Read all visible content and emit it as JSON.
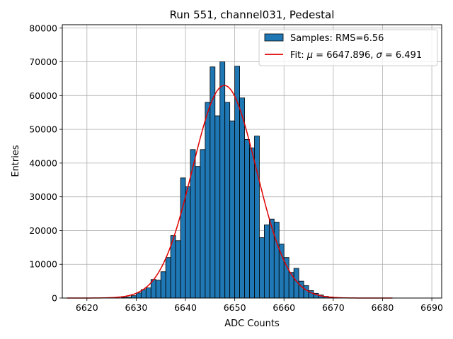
{
  "chart_data": {
    "type": "bar",
    "title": "Run 551, channel031, Pedestal",
    "xlabel": "ADC Counts",
    "ylabel": "Entries",
    "xlim": [
      6615,
      6692
    ],
    "ylim": [
      0,
      81000
    ],
    "grid": true,
    "legend_position": "top-right",
    "x_ticks": [
      6620,
      6630,
      6640,
      6650,
      6660,
      6670,
      6680,
      6690
    ],
    "y_ticks": [
      0,
      10000,
      20000,
      30000,
      40000,
      50000,
      60000,
      70000,
      80000
    ],
    "histogram": {
      "name": "Samples: RMS=6.56",
      "color": "#1f77b4",
      "bin_width": 1,
      "bins_start": [
        6627,
        6628,
        6629,
        6630,
        6631,
        6632,
        6633,
        6634,
        6635,
        6636,
        6637,
        6638,
        6639,
        6640,
        6641,
        6642,
        6643,
        6644,
        6645,
        6646,
        6647,
        6648,
        6649,
        6650,
        6651,
        6652,
        6653,
        6654,
        6655,
        6656,
        6657,
        6658,
        6659,
        6660,
        6661,
        6662,
        6663,
        6664,
        6665,
        6666,
        6667,
        6668,
        6669,
        6670
      ],
      "values": [
        200,
        300,
        700,
        1500,
        2500,
        3000,
        5500,
        5300,
        7800,
        12000,
        18500,
        17000,
        35600,
        33000,
        44000,
        39000,
        44000,
        58000,
        68500,
        54000,
        70000,
        58000,
        52500,
        68700,
        59300,
        47000,
        44500,
        48000,
        17900,
        21700,
        23400,
        22500,
        16000,
        12000,
        7600,
        8800,
        5000,
        3700,
        2200,
        1400,
        900,
        500,
        300,
        150
      ]
    },
    "fit": {
      "name_prefix": "Fit: ",
      "mu_symbol": "μ",
      "mu_text": " = 6647.896, ",
      "sigma_symbol": "σ",
      "sigma_text": " = 6.491",
      "mu": 6647.896,
      "sigma": 6.491,
      "amplitude": 63000,
      "x_range": [
        6616,
        6682
      ],
      "color": "#e00000"
    }
  }
}
